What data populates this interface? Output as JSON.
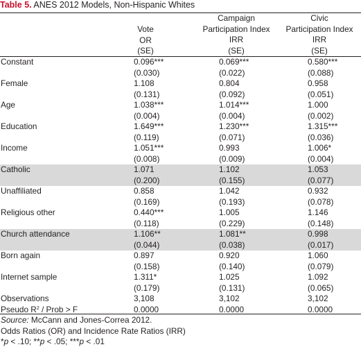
{
  "title": {
    "label": "Table 5.",
    "text": " ANES 2012 Models, Non-Hispanic Whites"
  },
  "columns": [
    {
      "lines": [
        "Vote",
        "OR",
        "(SE)"
      ]
    },
    {
      "lines": [
        "Campaign",
        "Participation Index",
        "IRR",
        "(SE)"
      ]
    },
    {
      "lines": [
        "Civic",
        "Participation Index",
        "IRR",
        "(SE)"
      ]
    }
  ],
  "rows": [
    {
      "label": "Constant",
      "v": [
        "0.096***",
        "0.069***",
        "0.580***"
      ],
      "se": [
        "(0.030)",
        "(0.022)",
        "(0.088)"
      ],
      "shaded": false
    },
    {
      "label": "Female",
      "v": [
        "1.108",
        "0.804",
        "0.958"
      ],
      "se": [
        "(0.131)",
        "(0.092)",
        "(0.051)"
      ],
      "shaded": false
    },
    {
      "label": "Age",
      "v": [
        "1.038***",
        "1.014***",
        "1.000"
      ],
      "se": [
        "(0.004)",
        "(0.004)",
        "(0.002)"
      ],
      "shaded": false
    },
    {
      "label": "Education",
      "v": [
        "1.649***",
        "1.230***",
        "1.315***"
      ],
      "se": [
        "(0.119)",
        "(0.071)",
        "(0.036)"
      ],
      "shaded": false
    },
    {
      "label": "Income",
      "v": [
        "1.051***",
        "0.993",
        "1.006*"
      ],
      "se": [
        "(0.008)",
        "(0.009)",
        "(0.004)"
      ],
      "shaded": false
    },
    {
      "label": "Catholic",
      "v": [
        "1.071",
        "1.102",
        "1.053"
      ],
      "se": [
        "(0.200)",
        "(0.155)",
        "(0.077)"
      ],
      "shaded": true
    },
    {
      "label": "Unaffiliated",
      "v": [
        "0.858",
        "1.042",
        "0.932"
      ],
      "se": [
        "(0.169)",
        "(0.193)",
        "(0.078)"
      ],
      "shaded": false
    },
    {
      "label": "Religious other",
      "v": [
        "0.440***",
        "1.005",
        "1.146"
      ],
      "se": [
        "(0.118)",
        "(0.229)",
        "(0.148)"
      ],
      "shaded": false
    },
    {
      "label": "Church attendance",
      "v": [
        "1.106**",
        "1.081**",
        "0.998"
      ],
      "se": [
        "(0.044)",
        "(0.038)",
        "(0.017)"
      ],
      "shaded": true
    },
    {
      "label": "Born again",
      "v": [
        "0.897",
        "0.920",
        "1.060"
      ],
      "se": [
        "(0.158)",
        "(0.140)",
        "(0.079)"
      ],
      "shaded": false
    },
    {
      "label": "Internet sample",
      "v": [
        "1.311*",
        "1.025",
        "1.092"
      ],
      "se": [
        "(0.179)",
        "(0.131)",
        "(0.065)"
      ],
      "shaded": false
    }
  ],
  "summary": [
    {
      "label": "Observations",
      "v": [
        "3,108",
        "3,102",
        "3,102"
      ]
    },
    {
      "label_pre": "Pseudo R",
      "label_sup": "2",
      "label_post": " / Prob > F",
      "v": [
        "0.0000",
        "0.0000",
        "0.0000"
      ]
    }
  ],
  "footnotes": {
    "source_label": "Source:",
    "source_text": " McCann and Jones-Correa 2012.",
    "ratios": "Odds Ratios (OR) and Incidence Rate Ratios (IRR)",
    "sig": [
      "*",
      "p",
      " < .10; **",
      "p",
      " < .05; ***",
      "p",
      " < .01"
    ]
  },
  "colors": {
    "title_label": "#c8102e",
    "shade": "#d9d9d9",
    "text": "#231f20"
  }
}
